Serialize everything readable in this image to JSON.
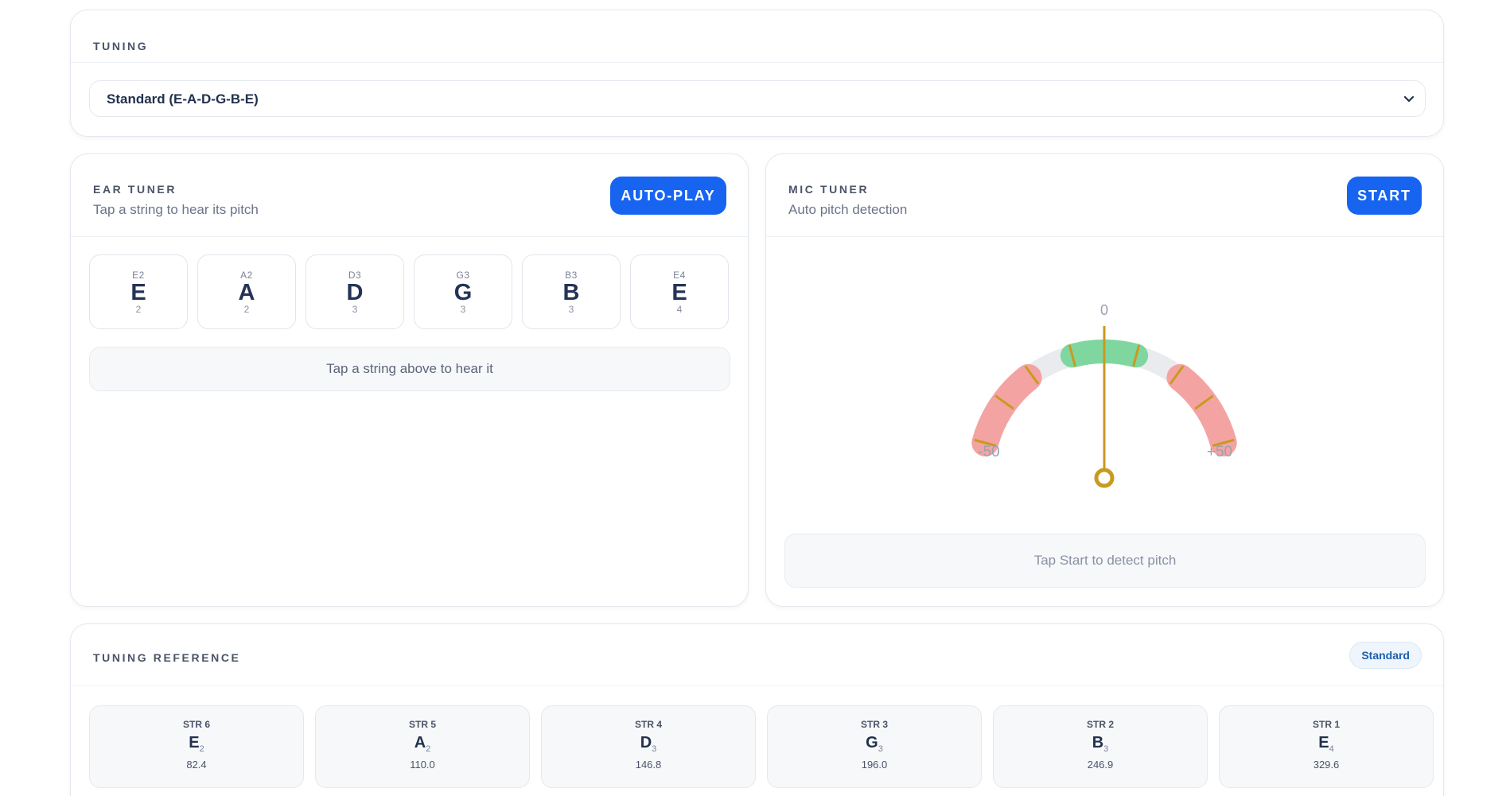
{
  "tuning": {
    "heading": "TUNING",
    "selected": "Standard (E-A-D-G-B-E)"
  },
  "ear_tuner": {
    "heading": "EAR TUNER",
    "subtitle": "Tap a string to hear its pitch",
    "button_label": "AUTO-PLAY",
    "strings": [
      {
        "label": "E2",
        "note": "E",
        "octave": "2"
      },
      {
        "label": "A2",
        "note": "A",
        "octave": "2"
      },
      {
        "label": "D3",
        "note": "D",
        "octave": "3"
      },
      {
        "label": "G3",
        "note": "G",
        "octave": "3"
      },
      {
        "label": "B3",
        "note": "B",
        "octave": "3"
      },
      {
        "label": "E4",
        "note": "E",
        "octave": "4"
      }
    ],
    "hint": "Tap a string above to hear it"
  },
  "mic_tuner": {
    "heading": "MIC TUNER",
    "subtitle": "Auto pitch detection",
    "button_label": "START",
    "gauge": {
      "center_label": "0",
      "min_label": "-50",
      "max_label": "+50",
      "cents": 0,
      "colors": {
        "out_of_tune": "#f4a3a3",
        "in_tune": "#7fd79f",
        "needle": "#c99a1f",
        "ticks": "#c99a1f"
      }
    },
    "hint": "Tap Start to detect pitch"
  },
  "reference": {
    "heading": "TUNING REFERENCE",
    "badge": "Standard",
    "strings": [
      {
        "label": "STR 6",
        "note": "E",
        "octave": "2",
        "freq": "82.4"
      },
      {
        "label": "STR 5",
        "note": "A",
        "octave": "2",
        "freq": "110.0"
      },
      {
        "label": "STR 4",
        "note": "D",
        "octave": "3",
        "freq": "146.8"
      },
      {
        "label": "STR 3",
        "note": "G",
        "octave": "3",
        "freq": "196.0"
      },
      {
        "label": "STR 2",
        "note": "B",
        "octave": "3",
        "freq": "246.9"
      },
      {
        "label": "STR 1",
        "note": "E",
        "octave": "4",
        "freq": "329.6"
      }
    ]
  },
  "colors": {
    "accent": "#1764f0"
  }
}
